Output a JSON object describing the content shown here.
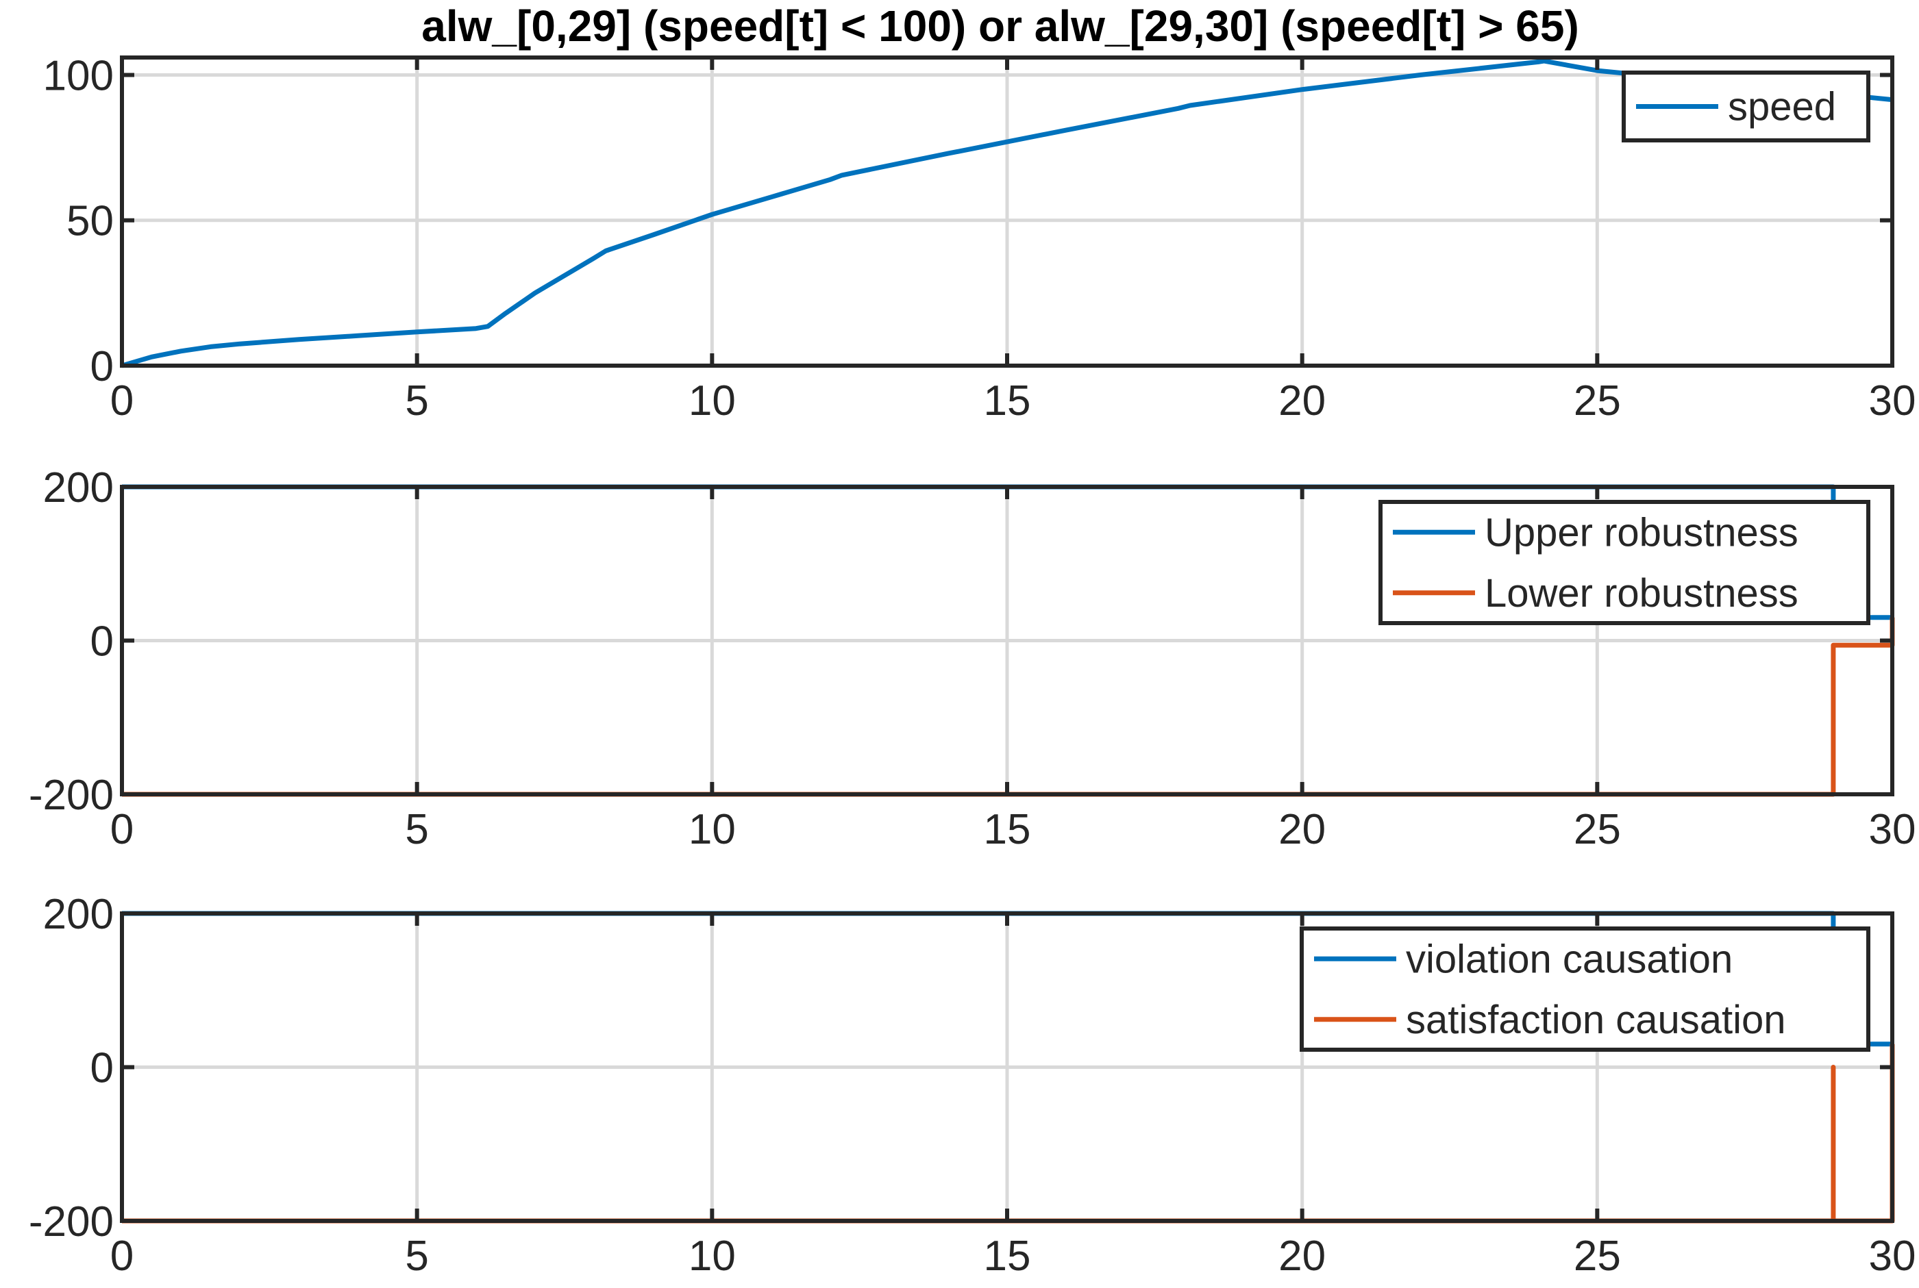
{
  "figure": {
    "title": "alw_[0,29] (speed[t] < 100) or alw_[29,30] (speed[t] > 65)"
  },
  "colors": {
    "blue": "#0072BD",
    "orange": "#D95319"
  },
  "chart_data": [
    {
      "type": "line",
      "title": "alw_[0,29] (speed[t] < 100) or alw_[29,30] (speed[t] > 65)",
      "xlim": [
        0,
        30
      ],
      "ylim": [
        0,
        106
      ],
      "xticks": [
        0,
        5,
        10,
        15,
        20,
        25,
        30
      ],
      "yticks": [
        0,
        50,
        100
      ],
      "grid": true,
      "legend_position": "top-right",
      "series": [
        {
          "name": "speed",
          "color": "#0072BD",
          "x": [
            0,
            0.5,
            1,
            1.5,
            2,
            3,
            4,
            5,
            6,
            6.2,
            6.5,
            7,
            7.5,
            8,
            8.2,
            9,
            10,
            11,
            12,
            12.2,
            14,
            16,
            17.9,
            18.1,
            20,
            22,
            24,
            24.1,
            25,
            27,
            28,
            29,
            29.5,
            30
          ],
          "y": [
            0,
            3,
            5,
            6.5,
            7.5,
            9,
            10.3,
            11.6,
            12.8,
            13.5,
            18,
            25,
            31,
            37,
            39.5,
            45,
            52,
            58,
            64,
            65.5,
            73,
            81,
            88.5,
            89.5,
            95,
            100,
            104.5,
            104.8,
            101.5,
            97.5,
            95.5,
            94,
            92.5,
            91.5
          ]
        }
      ]
    },
    {
      "type": "line",
      "xlim": [
        0,
        30
      ],
      "ylim": [
        -200,
        200
      ],
      "xticks": [
        0,
        5,
        10,
        15,
        20,
        25,
        30
      ],
      "yticks": [
        -200,
        0,
        200
      ],
      "grid": true,
      "legend_position": "top-right",
      "series": [
        {
          "name": "Upper robustness",
          "color": "#0072BD",
          "x": [
            0,
            29,
            29,
            30
          ],
          "y": [
            200,
            200,
            30,
            30
          ]
        },
        {
          "name": "Lower robustness",
          "color": "#D95319",
          "x": [
            0,
            29,
            29,
            30,
            30
          ],
          "y": [
            -200,
            -200,
            -6,
            -6,
            30
          ]
        }
      ]
    },
    {
      "type": "line",
      "xlim": [
        0,
        30
      ],
      "ylim": [
        -200,
        200
      ],
      "xticks": [
        0,
        5,
        10,
        15,
        20,
        25,
        30
      ],
      "yticks": [
        -200,
        0,
        200
      ],
      "grid": true,
      "legend_position": "top-right",
      "series": [
        {
          "name": "violation causation",
          "color": "#0072BD",
          "x": [
            0,
            29,
            29,
            30
          ],
          "y": [
            200,
            200,
            30,
            30
          ]
        },
        {
          "name": "satisfaction causation",
          "color": "#D95319",
          "x": [
            0,
            29,
            29,
            29,
            30,
            30
          ],
          "y": [
            -200,
            -200,
            0,
            -200,
            -200,
            30
          ]
        }
      ]
    }
  ]
}
